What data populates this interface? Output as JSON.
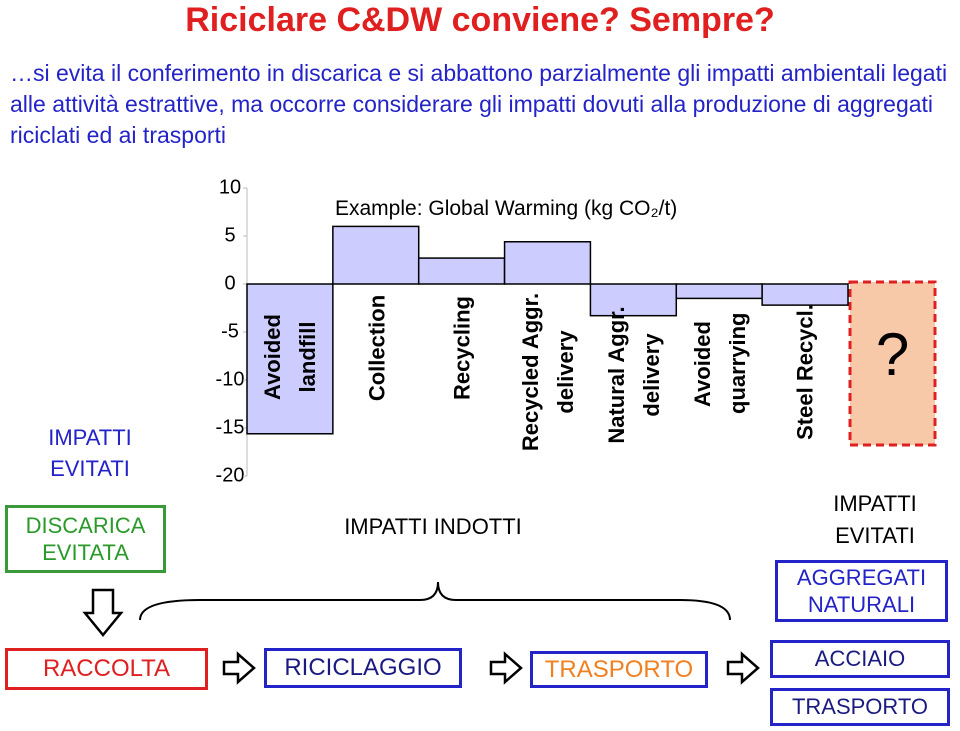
{
  "title": "Riciclare  C&DW conviene? Sempre?",
  "subtitle": "…si evita il conferimento in discarica e si abbattono parzialmente gli impatti ambientali legati alle attività estrattive, ma occorre considerare gli impatti dovuti alla produzione di aggregati riciclati ed ai trasporti",
  "chart_data": {
    "type": "bar",
    "title": "Example: Global Warming (kg CO₂/t)",
    "categories": [
      "Avoided landfill",
      "Collection",
      "Recycling",
      "Recycled Aggr. delivery",
      "Natural Aggr. delivery",
      "Avoided quarrying",
      "Steel Recycl."
    ],
    "values": [
      -15.6,
      6,
      2.7,
      4.4,
      -3.3,
      -1.5,
      -2.2
    ],
    "color": "#ccccff",
    "ylim": [
      -20,
      10
    ],
    "yticks": [
      10,
      5,
      0,
      -5,
      -10,
      -15,
      -20
    ],
    "grid": false
  },
  "unknown": "?",
  "left": {
    "heading": "IMPATTI EVITATI",
    "box": "DISCARICA EVITATA",
    "process": "RACCOLTA"
  },
  "middle": {
    "heading": "IMPATTI INDOTTI",
    "process_1": "RICICLAGGIO",
    "process_2": "TRASPORTO"
  },
  "right": {
    "heading": "IMPATTI EVITATI",
    "box": "AGGREGATI NATURALI",
    "process_1": "ACCIAIO",
    "process_2": "TRASPORTO"
  }
}
